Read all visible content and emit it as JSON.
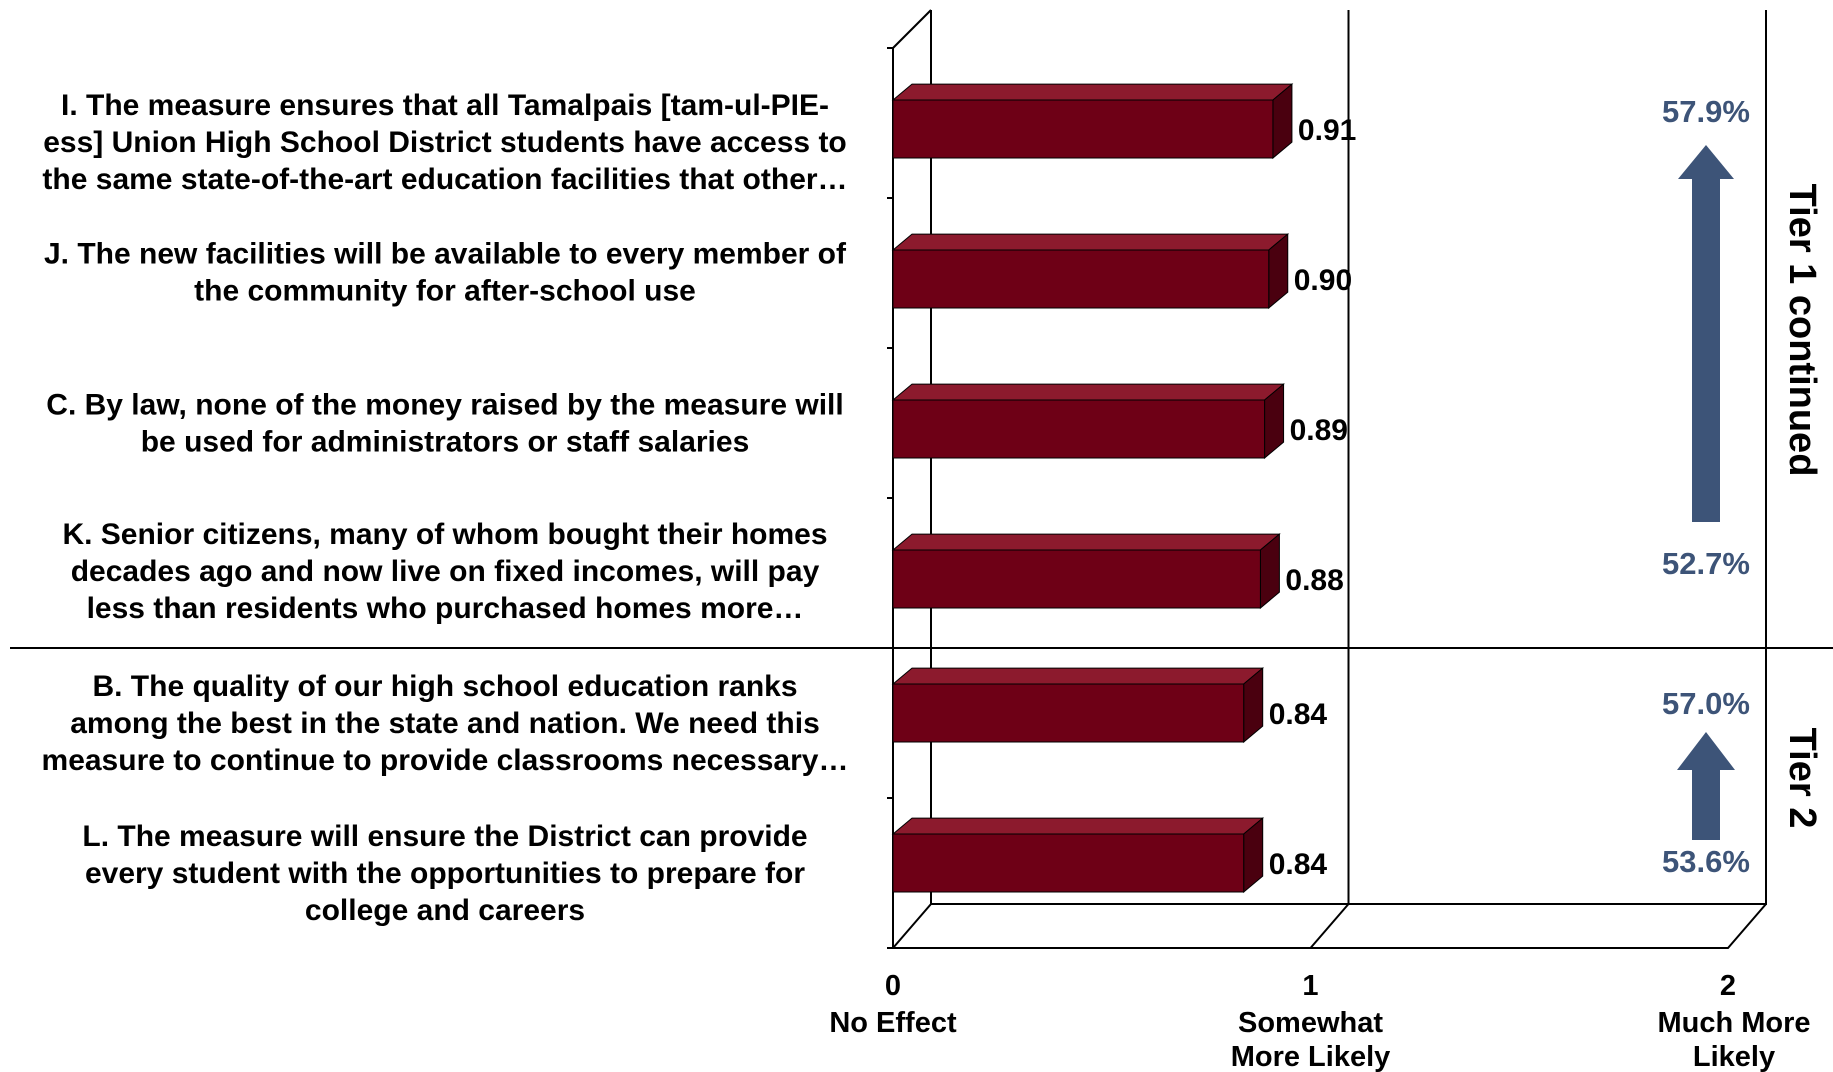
{
  "chart_data": {
    "type": "bar",
    "orientation": "horizontal",
    "style": "3d",
    "categories": [
      [
        "I. The measure ensures that all Tamalpais [tam-ul-PIE-",
        "ess] Union High School District students have access to",
        "the same state-of-the-art education facilities that other…"
      ],
      [
        "J. The new facilities will be available to every member of",
        "the community for after-school use"
      ],
      [
        "C. By law, none of the money raised by the measure will",
        "be used for administrators or staff salaries"
      ],
      [
        "K. Senior citizens, many of whom bought their homes",
        "decades ago and now live on fixed incomes, will pay",
        "less than residents who purchased homes more…"
      ],
      [
        "B. The quality of our high school education ranks",
        "among the best in the state and nation. We need this",
        "measure to continue to provide classrooms necessary…"
      ],
      [
        "L. The measure will ensure the District can provide",
        "every student with the opportunities to prepare for",
        "college and careers"
      ]
    ],
    "values": [
      0.91,
      0.9,
      0.89,
      0.88,
      0.84,
      0.84
    ],
    "value_labels": [
      "0.91",
      "0.90",
      "0.89",
      "0.88",
      "0.84",
      "0.84"
    ],
    "xlim": [
      0,
      2
    ],
    "x_ticks": [
      {
        "value": 0,
        "label": "0",
        "sublabel": [
          "No Effect"
        ]
      },
      {
        "value": 1,
        "label": "1",
        "sublabel": [
          "Somewhat",
          "More  Likely"
        ]
      },
      {
        "value": 2,
        "label": "2",
        "sublabel": [
          "Much More",
          "Likely"
        ]
      }
    ],
    "tiers": [
      {
        "name": "Tier 1 continued",
        "rows": [
          0,
          1,
          2,
          3
        ],
        "top_pct": "57.9%",
        "bottom_pct": "52.7%"
      },
      {
        "name": "Tier 2",
        "rows": [
          4,
          5
        ],
        "top_pct": "57.0%",
        "bottom_pct": "53.6%"
      }
    ],
    "colors": {
      "bar_front": "#6e0016",
      "bar_top": "#8c1a2d",
      "bar_side": "#4a000f",
      "arrow": "#3d5478",
      "pct_text": "#3d5478"
    }
  }
}
